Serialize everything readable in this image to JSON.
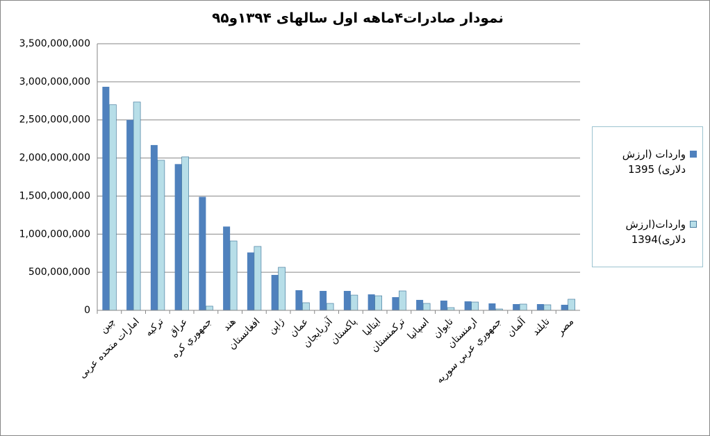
{
  "chart_data": {
    "type": "bar",
    "title": "نمودار صادرات۴ماهه اول سالهای ۱۳۹۴و۹۵",
    "categories": [
      "چین",
      "امارات متحده عربی",
      "ترکیه",
      "عراق",
      "جمهوري كره",
      "هند",
      "افغانستان",
      "ژاپن",
      "عمان",
      "آذربایجان",
      "پاكستان",
      "ایتالیا",
      "تركمنستان",
      "اسپانیا",
      "تايوان",
      "ارمنستان",
      "جمهوري عربي سوريه",
      "آلمان",
      "تایلند",
      "مصر"
    ],
    "series": [
      {
        "name": "واردات (ارزش دلاری) 1395",
        "color": "#4f81bd",
        "values": [
          2935000000,
          2500000000,
          2170000000,
          1920000000,
          1490000000,
          1100000000,
          760000000,
          465000000,
          264000000,
          255000000,
          255000000,
          210000000,
          173000000,
          137000000,
          128000000,
          118000000,
          91000000,
          82000000,
          82000000,
          73000000
        ]
      },
      {
        "name": "واردات(ارزش دلاری)1394",
        "color": "#b7dee8",
        "values": [
          2700000000,
          2735000000,
          1970000000,
          2015000000,
          55000000,
          911000000,
          839000000,
          565000000,
          100000000,
          91000000,
          200000000,
          191000000,
          255000000,
          91000000,
          36000000,
          109000000,
          18000000,
          82000000,
          73000000,
          146000000
        ]
      }
    ],
    "ylim": [
      0,
      3500000000
    ],
    "yticks": [
      0,
      {
        "value": 500000000,
        "label": "500,000,000"
      },
      {
        "value": 1000000000,
        "label": "1,000,000,000"
      },
      {
        "value": 1500000000,
        "label": "1,500,000,000"
      },
      {
        "value": 2000000000,
        "label": "2,000,000,000"
      },
      {
        "value": 2500000000,
        "label": "2,500,000,000"
      },
      {
        "value": 3000000000,
        "label": "3,000,000,000"
      },
      {
        "value": 3500000000,
        "label": "3,500,000,000"
      }
    ],
    "grid": true
  }
}
